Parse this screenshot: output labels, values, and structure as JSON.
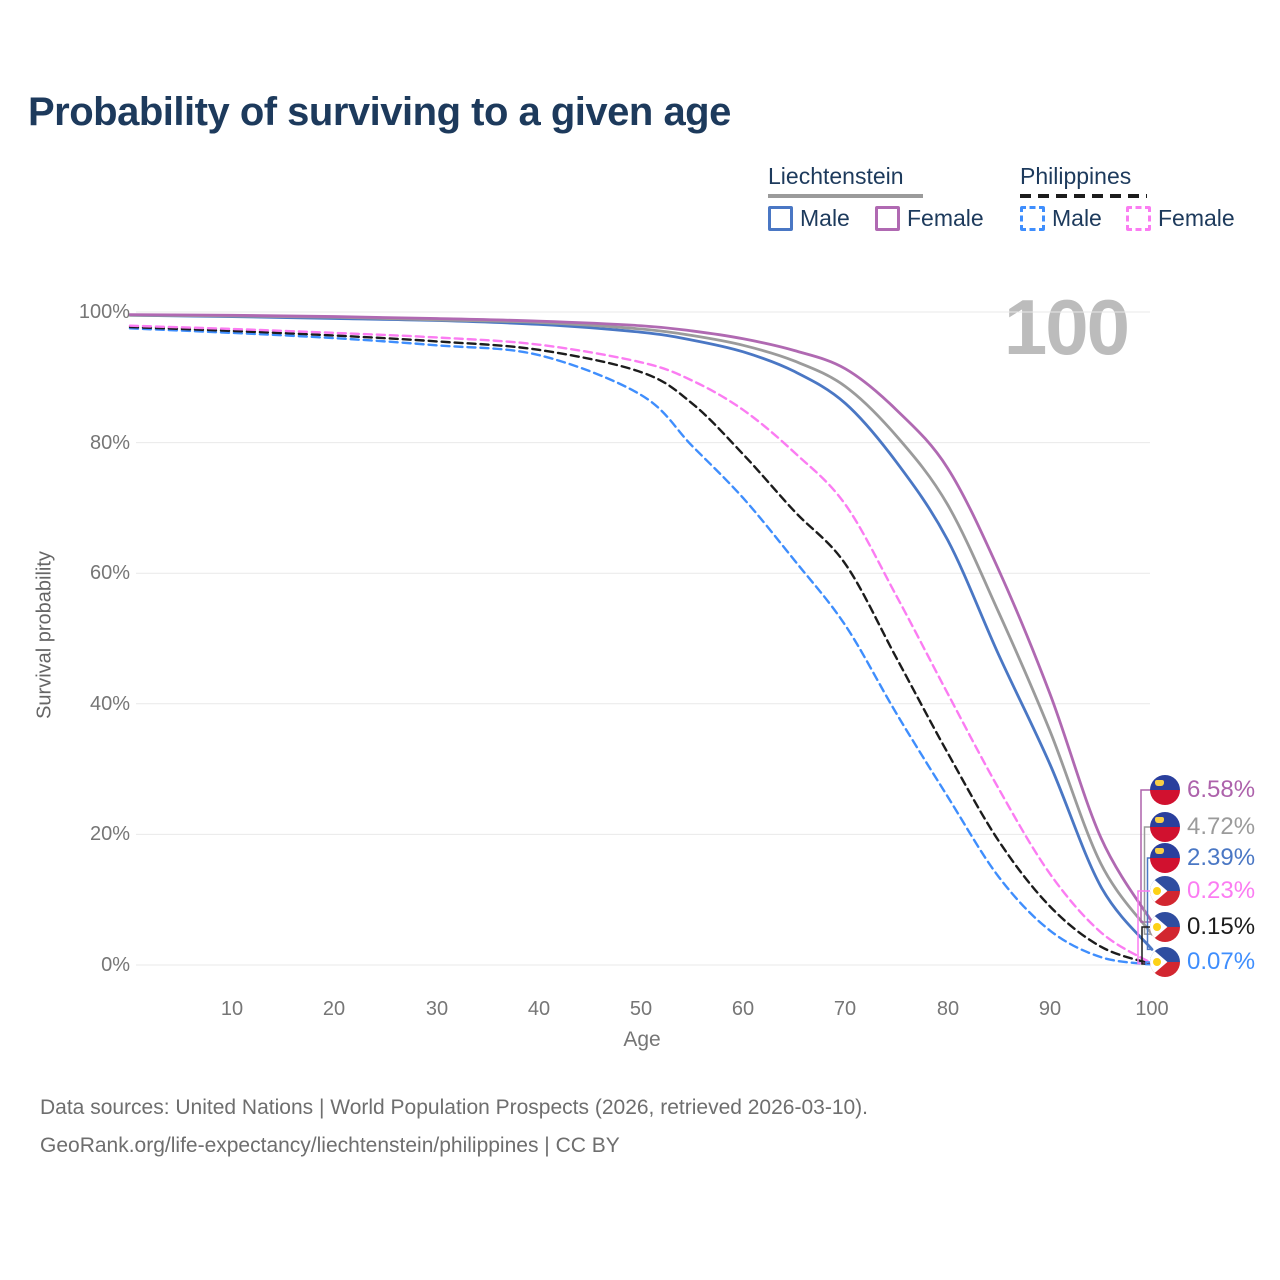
{
  "page": {
    "title": "Probability of surviving to a given age"
  },
  "legend": {
    "groups": [
      {
        "name": "Liechtenstein",
        "line_style": "solid",
        "line_color": "#9b9b9b",
        "items": [
          {
            "label": "Male",
            "color": "#4a77c4",
            "dashed": false
          },
          {
            "label": "Female",
            "color": "#b069b2",
            "dashed": false
          }
        ]
      },
      {
        "name": "Philippines",
        "line_style": "dashed",
        "line_color": "#1c1c1c",
        "items": [
          {
            "label": "Male",
            "color": "#3f8efd",
            "dashed": true
          },
          {
            "label": "Female",
            "color": "#fb7cf2",
            "dashed": true
          }
        ]
      }
    ]
  },
  "endpoints": [
    {
      "country": "Liechtenstein",
      "series": "Female",
      "label": "6.58%",
      "value": 6.58,
      "color": "#ad62ab",
      "flag": "liechtenstein"
    },
    {
      "country": "Liechtenstein",
      "series": "Both sexes",
      "label": "4.72%",
      "value": 4.72,
      "color": "#9b9b9b",
      "flag": "liechtenstein"
    },
    {
      "country": "Liechtenstein",
      "series": "Male",
      "label": "2.39%",
      "value": 2.39,
      "color": "#4a77c4",
      "flag": "liechtenstein"
    },
    {
      "country": "Philippines",
      "series": "Female",
      "label": "0.23%",
      "value": 0.23,
      "color": "#fb7cf2",
      "flag": "philippines"
    },
    {
      "country": "Philippines",
      "series": "Both sexes",
      "label": "0.15%",
      "value": 0.15,
      "color": "#1c1c1c",
      "flag": "philippines"
    },
    {
      "country": "Philippines",
      "series": "Male",
      "label": "0.07%",
      "value": 0.07,
      "color": "#3f8efd",
      "flag": "philippines"
    }
  ],
  "footer": {
    "line1": "Data sources: United Nations | World Population Prospects (2026, retrieved 2026-03-10).",
    "line2": "GeoRank.org/life-expectancy/liechtenstein/philippines | CC BY"
  },
  "chart_data": {
    "type": "line",
    "title": "Probability of surviving to a given age",
    "xlabel": "Age",
    "ylabel": "Survival probability",
    "xlim": [
      0,
      100
    ],
    "ylim": [
      0,
      100
    ],
    "grid": "horizontal",
    "legend_position": "top-right",
    "age_cursor": "100",
    "x_tick_labels": [
      "10",
      "20",
      "30",
      "40",
      "50",
      "60",
      "70",
      "80",
      "90",
      "100"
    ],
    "y_tick_labels": [
      "0%",
      "20%",
      "40%",
      "60%",
      "80%",
      "100%"
    ],
    "ages": [
      0,
      10,
      20,
      30,
      40,
      50,
      55,
      60,
      65,
      70,
      75,
      80,
      85,
      90,
      95,
      100
    ],
    "series": [
      {
        "name": "Liechtenstein Male",
        "color": "#4a77c4",
        "dash": false,
        "values": [
          99.5,
          99.3,
          99.0,
          98.7,
          98.1,
          96.9,
          95.7,
          93.9,
          90.9,
          86.0,
          77.0,
          65.1,
          47.5,
          30.8,
          12.0,
          2.39
        ]
      },
      {
        "name": "Liechtenstein Female",
        "color": "#b069b2",
        "dash": false,
        "values": [
          99.6,
          99.5,
          99.3,
          99.0,
          98.6,
          97.9,
          97.1,
          95.9,
          94.1,
          91.3,
          85.0,
          76.1,
          60.5,
          41.6,
          19.5,
          6.58
        ]
      },
      {
        "name": "Liechtenstein Both sexes",
        "color": "#9b9b9b",
        "dash": false,
        "values": [
          99.5,
          99.4,
          99.2,
          98.8,
          98.4,
          97.4,
          96.4,
          94.9,
          92.5,
          88.6,
          81.0,
          70.5,
          54.0,
          35.9,
          15.5,
          4.72
        ]
      },
      {
        "name": "Philippines Male",
        "color": "#3f8efd",
        "dash": true,
        "values": [
          97.5,
          96.8,
          96.0,
          94.9,
          93.4,
          87.3,
          79.5,
          71.5,
          62.0,
          52.0,
          38.5,
          25.8,
          13.5,
          5.3,
          1.2,
          0.07
        ]
      },
      {
        "name": "Philippines Female",
        "color": "#fb7cf2",
        "dash": true,
        "values": [
          97.9,
          97.4,
          96.8,
          96.1,
          95.0,
          92.3,
          89.5,
          85.0,
          78.5,
          70.5,
          56.5,
          41.6,
          27.0,
          14.0,
          5.0,
          0.23
        ]
      },
      {
        "name": "Philippines Both sexes",
        "color": "#1c1c1c",
        "dash": true,
        "values": [
          97.7,
          97.1,
          96.4,
          95.5,
          94.2,
          90.8,
          86.0,
          78.2,
          69.5,
          61.4,
          47.0,
          32.5,
          19.0,
          9.0,
          2.8,
          0.15
        ]
      }
    ]
  }
}
